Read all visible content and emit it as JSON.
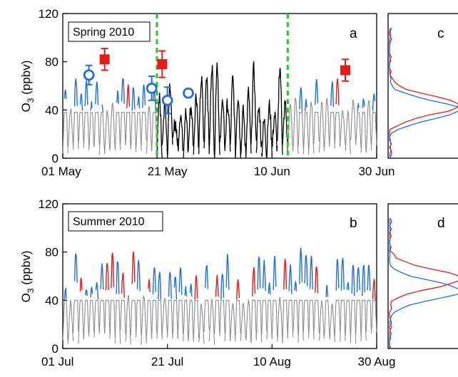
{
  "chart_data": [
    {
      "type": "line",
      "panel": "a",
      "title": "Spring 2010",
      "ylabel": "O3 (ppbv)",
      "ylim": [
        0,
        120
      ],
      "yticks": [
        "0",
        "40",
        "80",
        "120"
      ],
      "xticks": [
        "01 May",
        "21 May",
        "10 Jun",
        "30 Jun"
      ],
      "x_range": [
        "2010-05-01",
        "2010-06-30"
      ],
      "series": [
        {
          "color_role": "gray",
          "values_summary": "diurnal cycle, night minima ~5–10, daytime maxima ~40–55"
        },
        {
          "color_role": "blue",
          "values_summary": "daytime maxima ~45–70"
        },
        {
          "color_role": "red",
          "values_summary": "daytime maxima ~50–85"
        },
        {
          "color_role": "black",
          "period": [
            "2010-05-19",
            "2010-06-13"
          ],
          "values_summary": "continuous record 0–85"
        }
      ],
      "vertical_markers": [
        {
          "x": "2010-05-19",
          "style": "dashed",
          "color": "#22cc22"
        },
        {
          "x": "2010-06-13",
          "style": "dashed",
          "color": "#22cc22"
        }
      ],
      "red_squares": [
        {
          "x": "2010-05-09",
          "y": 82,
          "err": 9
        },
        {
          "x": "2010-05-20",
          "y": 78,
          "err": 11
        },
        {
          "x": "2010-06-24",
          "y": 73,
          "err": 9
        }
      ],
      "blue_circles": [
        {
          "x": "2010-05-06",
          "y": 69,
          "err": 8
        },
        {
          "x": "2010-05-18",
          "y": 58,
          "err": 10
        },
        {
          "x": "2010-05-21",
          "y": 48,
          "err": 11
        },
        {
          "x": "2010-05-25",
          "y": 54,
          "err": 0
        }
      ]
    },
    {
      "type": "line",
      "panel": "b",
      "title": "Summer 2010",
      "ylabel": "O3 (ppbv)",
      "ylim": [
        0,
        120
      ],
      "yticks": [
        "0",
        "40",
        "80",
        "120"
      ],
      "xticks": [
        "01 Jul",
        "21 Jul",
        "10 Aug",
        "30 Aug"
      ],
      "x_range": [
        "2010-07-01",
        "2010-08-30"
      ],
      "series": [
        {
          "color_role": "gray",
          "values_summary": "diurnal cycle, night minima ~5–15, daytime maxima ~35–45"
        },
        {
          "color_role": "blue",
          "values_summary": "daytime maxima ~50–90"
        },
        {
          "color_role": "red",
          "values_summary": "daytime maxima ~55–85"
        }
      ]
    },
    {
      "type": "line",
      "panel": "c",
      "note": "frequency distribution of O3, partially cropped",
      "series": [
        {
          "color_role": "red",
          "peak_y": 44
        },
        {
          "color_role": "blue",
          "peak_y": 40
        }
      ]
    },
    {
      "type": "line",
      "panel": "d",
      "note": "frequency distribution of O3, partially cropped",
      "series": [
        {
          "color_role": "red",
          "peak_y": 58
        },
        {
          "color_role": "blue",
          "peak_y": 48
        }
      ]
    }
  ],
  "labels": {
    "panel_a_title": "Spring 2010",
    "panel_b_title": "Summer 2010",
    "letter_a": "a",
    "letter_b": "b",
    "letter_c": "c",
    "letter_d": "d",
    "ylabel_main": "O",
    "ylabel_sub": "3",
    "ylabel_unit": " (ppbv)"
  },
  "colors": {
    "gray": "#8c8c8c",
    "blue": "#1f6fe0",
    "red": "#e51b1b",
    "black": "#000000",
    "green": "#22cc22"
  }
}
